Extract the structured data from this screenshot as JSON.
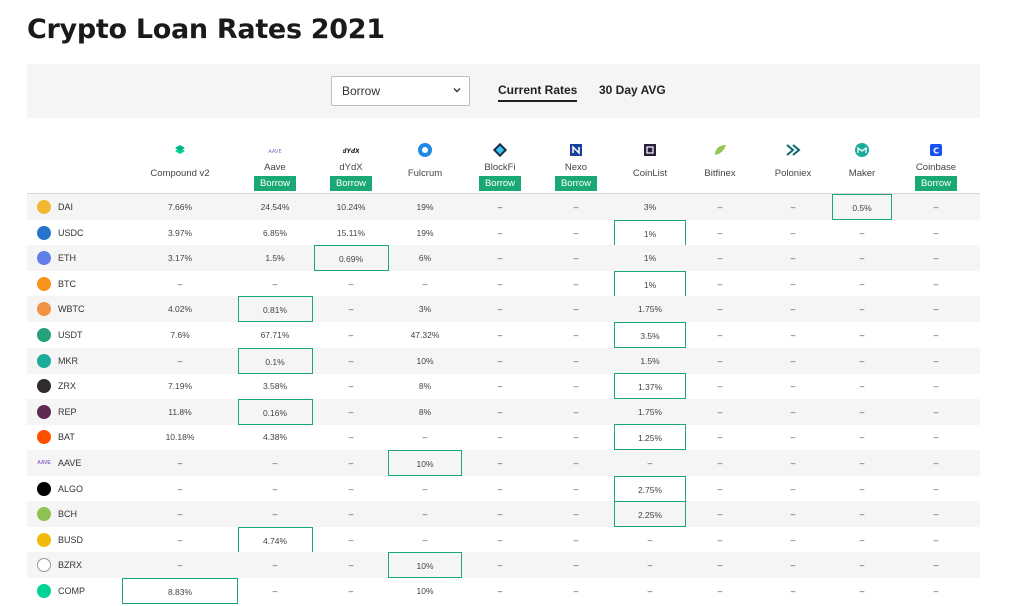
{
  "title": "Crypto Loan Rates 2021",
  "toolbar": {
    "select_value": "Borrow",
    "tab_current": "Current Rates",
    "tab_avg": "30 Day AVG"
  },
  "colors": {
    "accent": "#1aa974",
    "row_shade": "#f5f5f5"
  },
  "providers": [
    {
      "name": "Compound v2",
      "icon": "compound-logo",
      "button": ""
    },
    {
      "name": "Aave",
      "icon": "aave-logo",
      "button": "Borrow"
    },
    {
      "name": "dYdX",
      "icon": "dydx-logo",
      "button": "Borrow"
    },
    {
      "name": "Fulcrum",
      "icon": "fulcrum-logo",
      "button": ""
    },
    {
      "name": "BlockFi",
      "icon": "blockfi-logo",
      "button": "Borrow"
    },
    {
      "name": "Nexo",
      "icon": "nexo-logo",
      "button": "Borrow"
    },
    {
      "name": "CoinList",
      "icon": "coinlist-logo",
      "button": ""
    },
    {
      "name": "Bitfinex",
      "icon": "bitfinex-logo",
      "button": ""
    },
    {
      "name": "Poloniex",
      "icon": "poloniex-logo",
      "button": ""
    },
    {
      "name": "Maker",
      "icon": "maker-logo",
      "button": ""
    },
    {
      "name": "Coinbase",
      "icon": "coinbase-logo",
      "button": "Borrow"
    }
  ],
  "rows": [
    {
      "asset": "DAI",
      "icon": "dai-icon",
      "color": "#f4b731",
      "values": [
        "7.66%",
        "24.54%",
        "10.24%",
        "19%",
        "–",
        "–",
        "3%",
        "–",
        "–",
        "0.5%",
        "–"
      ],
      "best": 9
    },
    {
      "asset": "USDC",
      "icon": "usdc-icon",
      "color": "#2775ca",
      "values": [
        "3.97%",
        "6.85%",
        "15.11%",
        "19%",
        "–",
        "–",
        "1%",
        "–",
        "–",
        "–",
        "–"
      ],
      "best": 6
    },
    {
      "asset": "ETH",
      "icon": "eth-icon",
      "color": "#627eea",
      "values": [
        "3.17%",
        "1.5%",
        "0.69%",
        "6%",
        "–",
        "–",
        "1%",
        "–",
        "–",
        "–",
        "–"
      ],
      "best": 2
    },
    {
      "asset": "BTC",
      "icon": "btc-icon",
      "color": "#f7931a",
      "values": [
        "–",
        "–",
        "–",
        "–",
        "–",
        "–",
        "1%",
        "–",
        "–",
        "–",
        "–"
      ],
      "best": 6
    },
    {
      "asset": "WBTC",
      "icon": "wbtc-icon",
      "color": "#f09242",
      "values": [
        "4.02%",
        "0.81%",
        "–",
        "3%",
        "–",
        "–",
        "1.75%",
        "–",
        "–",
        "–",
        "–"
      ],
      "best": 1
    },
    {
      "asset": "USDT",
      "icon": "usdt-icon",
      "color": "#26a17b",
      "values": [
        "7.6%",
        "67.71%",
        "–",
        "47.32%",
        "–",
        "–",
        "3.5%",
        "–",
        "–",
        "–",
        "–"
      ],
      "best": 6
    },
    {
      "asset": "MKR",
      "icon": "mkr-icon",
      "color": "#1aab9b",
      "values": [
        "–",
        "0.1%",
        "–",
        "10%",
        "–",
        "–",
        "1.5%",
        "–",
        "–",
        "–",
        "–"
      ],
      "best": 1
    },
    {
      "asset": "ZRX",
      "icon": "zrx-icon",
      "color": "#302c2c",
      "values": [
        "7.19%",
        "3.58%",
        "–",
        "8%",
        "–",
        "–",
        "1.37%",
        "–",
        "–",
        "–",
        "–"
      ],
      "best": 6
    },
    {
      "asset": "REP",
      "icon": "rep-icon",
      "color": "#602a52",
      "values": [
        "11.8%",
        "0.16%",
        "–",
        "8%",
        "–",
        "–",
        "1.75%",
        "–",
        "–",
        "–",
        "–"
      ],
      "best": 1
    },
    {
      "asset": "BAT",
      "icon": "bat-icon",
      "color": "#ff5000",
      "values": [
        "10.18%",
        "4.38%",
        "–",
        "–",
        "–",
        "–",
        "1.25%",
        "–",
        "–",
        "–",
        "–"
      ],
      "best": 6
    },
    {
      "asset": "AAVE",
      "icon": "aave-icon",
      "color": "#b6509e",
      "values": [
        "–",
        "–",
        "–",
        "10%",
        "–",
        "–",
        "–",
        "–",
        "–",
        "–",
        "–"
      ],
      "best": 3
    },
    {
      "asset": "ALGO",
      "icon": "algo-icon",
      "color": "#000000",
      "values": [
        "–",
        "–",
        "–",
        "–",
        "–",
        "–",
        "2.75%",
        "–",
        "–",
        "–",
        "–"
      ],
      "best": 6
    },
    {
      "asset": "BCH",
      "icon": "bch-icon",
      "color": "#8dc351",
      "values": [
        "–",
        "–",
        "–",
        "–",
        "–",
        "–",
        "2.25%",
        "–",
        "–",
        "–",
        "–"
      ],
      "best": 6
    },
    {
      "asset": "BUSD",
      "icon": "busd-icon",
      "color": "#f0b90b",
      "values": [
        "–",
        "4.74%",
        "–",
        "–",
        "–",
        "–",
        "–",
        "–",
        "–",
        "–",
        "–"
      ],
      "best": 1
    },
    {
      "asset": "BZRX",
      "icon": "bzrx-icon",
      "color": "#ffffff",
      "values": [
        "–",
        "–",
        "–",
        "10%",
        "–",
        "–",
        "–",
        "–",
        "–",
        "–",
        "–"
      ],
      "best": 3
    },
    {
      "asset": "COMP",
      "icon": "comp-icon",
      "color": "#00d395",
      "values": [
        "8.83%",
        "–",
        "–",
        "10%",
        "–",
        "–",
        "–",
        "–",
        "–",
        "–",
        "–"
      ],
      "best": 0
    }
  ]
}
